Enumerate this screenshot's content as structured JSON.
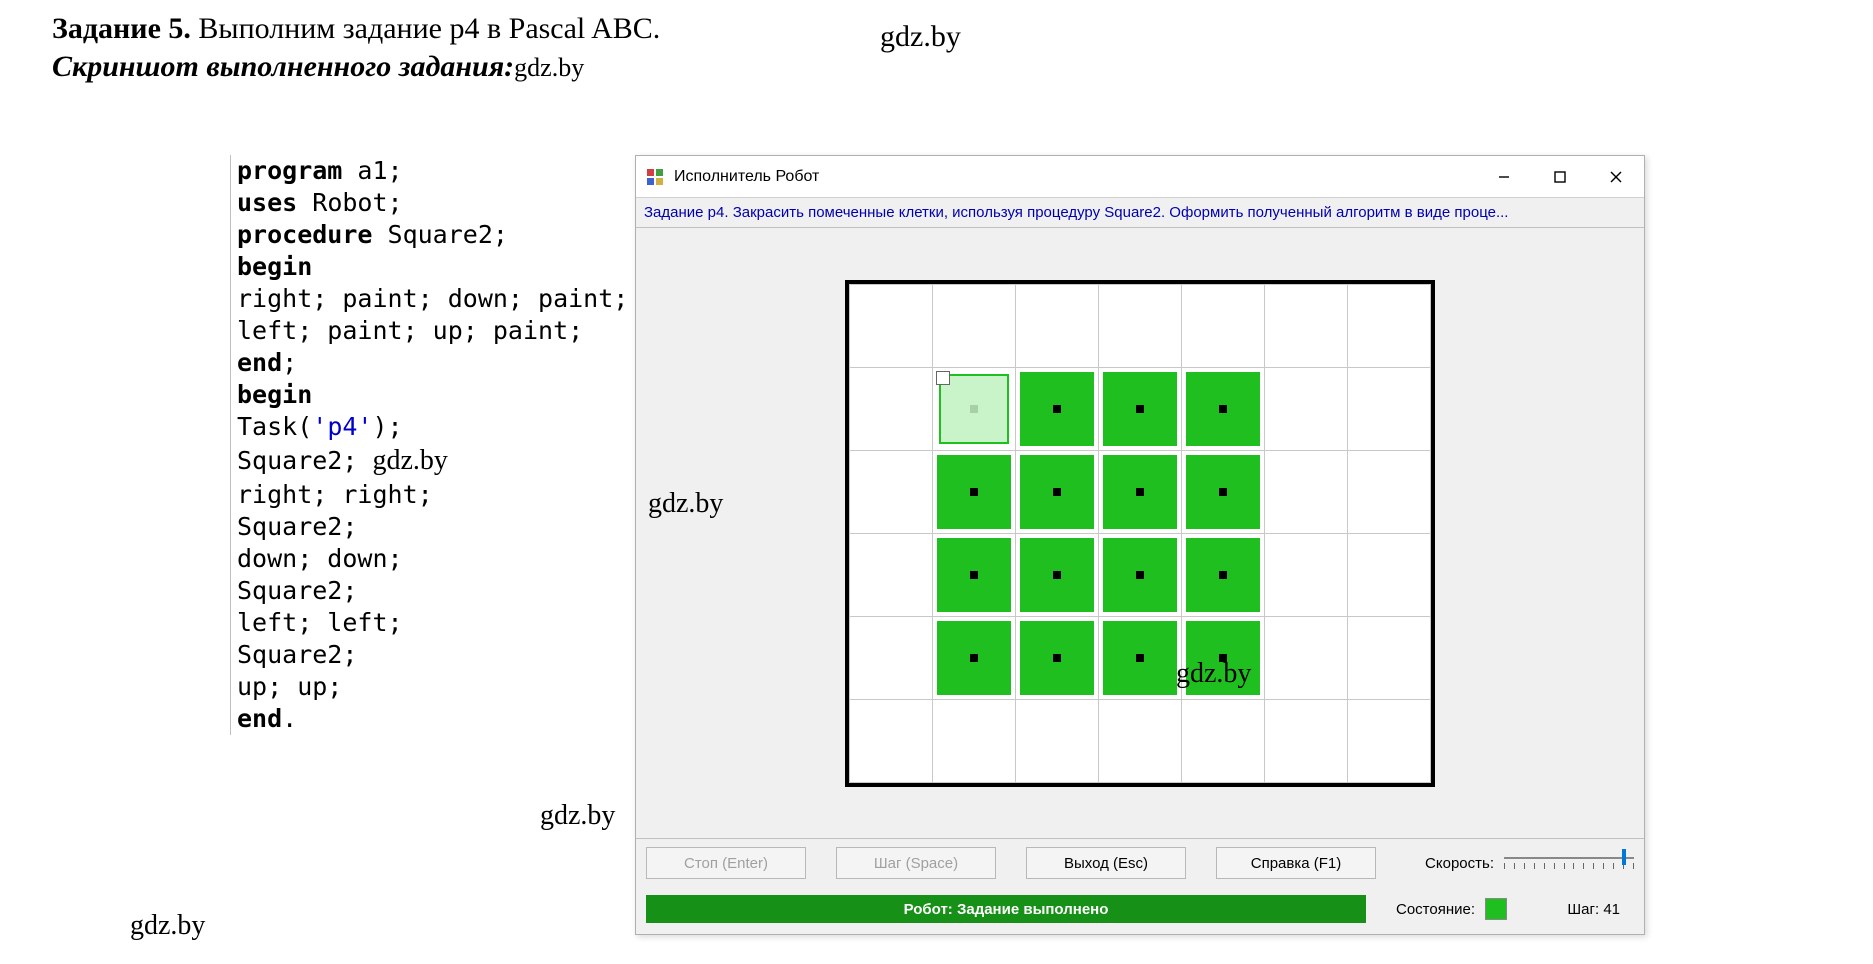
{
  "page_title_bold": "Задание 5.",
  "page_title_rest": " Выполним задание p4 в Pascal ABC.",
  "page_subtitle": "Скриншот выполненного задания:",
  "watermarks": {
    "top_right": "gdz.by",
    "subtitle_inline": "gdz.by",
    "code_inline": "gdz.by",
    "canvas_left": "gdz.by",
    "canvas_inside": "gdz.by",
    "before_buttons": "gdz.by",
    "bottom_left": "gdz.by"
  },
  "code_lines": [
    [
      {
        "t": "kw",
        "v": "program"
      },
      {
        "t": "",
        "v": " a1;"
      }
    ],
    [
      {
        "t": "kw",
        "v": "uses"
      },
      {
        "t": "",
        "v": " Robot;"
      }
    ],
    [
      {
        "t": "kw",
        "v": "procedure"
      },
      {
        "t": "",
        "v": " Square2;"
      }
    ],
    [
      {
        "t": "kw",
        "v": "begin"
      }
    ],
    [
      {
        "t": "",
        "v": "  right; paint; down; paint;"
      }
    ],
    [
      {
        "t": "",
        "v": "  left; paint; up; paint;"
      }
    ],
    [
      {
        "t": "kw",
        "v": "end"
      },
      {
        "t": "",
        "v": ";"
      }
    ],
    [
      {
        "t": "kw",
        "v": "begin"
      }
    ],
    [
      {
        "t": "",
        "v": "  Task("
      },
      {
        "t": "str",
        "v": "'p4'"
      },
      {
        "t": "",
        "v": ");"
      }
    ],
    [
      {
        "t": "",
        "v": "  Square2;  "
      },
      {
        "t": "wm",
        "v": "gdz.by"
      }
    ],
    [
      {
        "t": "",
        "v": "  right; right;"
      }
    ],
    [
      {
        "t": "",
        "v": "  Square2;"
      }
    ],
    [
      {
        "t": "",
        "v": "  down; down;"
      }
    ],
    [
      {
        "t": "",
        "v": "  Square2;"
      }
    ],
    [
      {
        "t": "",
        "v": "  left; left;"
      }
    ],
    [
      {
        "t": "",
        "v": "  Square2;"
      }
    ],
    [
      {
        "t": "",
        "v": "  up; up;"
      }
    ],
    [
      {
        "t": "kw",
        "v": "end"
      },
      {
        "t": "",
        "v": "."
      }
    ]
  ],
  "window": {
    "title": "Исполнитель Робот",
    "task_text": "Задание p4. Закрасить помеченные клетки, используя процедуру Square2. Оформить полученный алгоритм в виде проце...",
    "buttons": {
      "stop": "Стоп (Enter)",
      "step": "Шаг (Space)",
      "exit": "Выход (Esc)",
      "help": "Справка (F1)"
    },
    "speed_label": "Скорость:",
    "status_text": "Робот: Задание выполнено",
    "state_label": "Состояние:",
    "step_label": "Шаг:",
    "step_value": "41"
  },
  "grid": {
    "cols": 7,
    "rows": 6,
    "robot": {
      "r": 1,
      "c": 1
    },
    "painted_dots": [
      {
        "r": 1,
        "c": 2
      },
      {
        "r": 1,
        "c": 3
      },
      {
        "r": 1,
        "c": 4
      },
      {
        "r": 2,
        "c": 1
      },
      {
        "r": 2,
        "c": 2
      },
      {
        "r": 2,
        "c": 3
      },
      {
        "r": 2,
        "c": 4
      },
      {
        "r": 3,
        "c": 1
      },
      {
        "r": 3,
        "c": 2
      },
      {
        "r": 3,
        "c": 3
      },
      {
        "r": 3,
        "c": 4
      },
      {
        "r": 4,
        "c": 1
      },
      {
        "r": 4,
        "c": 2
      },
      {
        "r": 4,
        "c": 3
      },
      {
        "r": 4,
        "c": 4
      }
    ],
    "colors": {
      "painted": "#1fbf1f",
      "robot_fill": "#c9f3c9",
      "grid_border": "#c8c8c8",
      "frame_border": "#000000"
    }
  }
}
